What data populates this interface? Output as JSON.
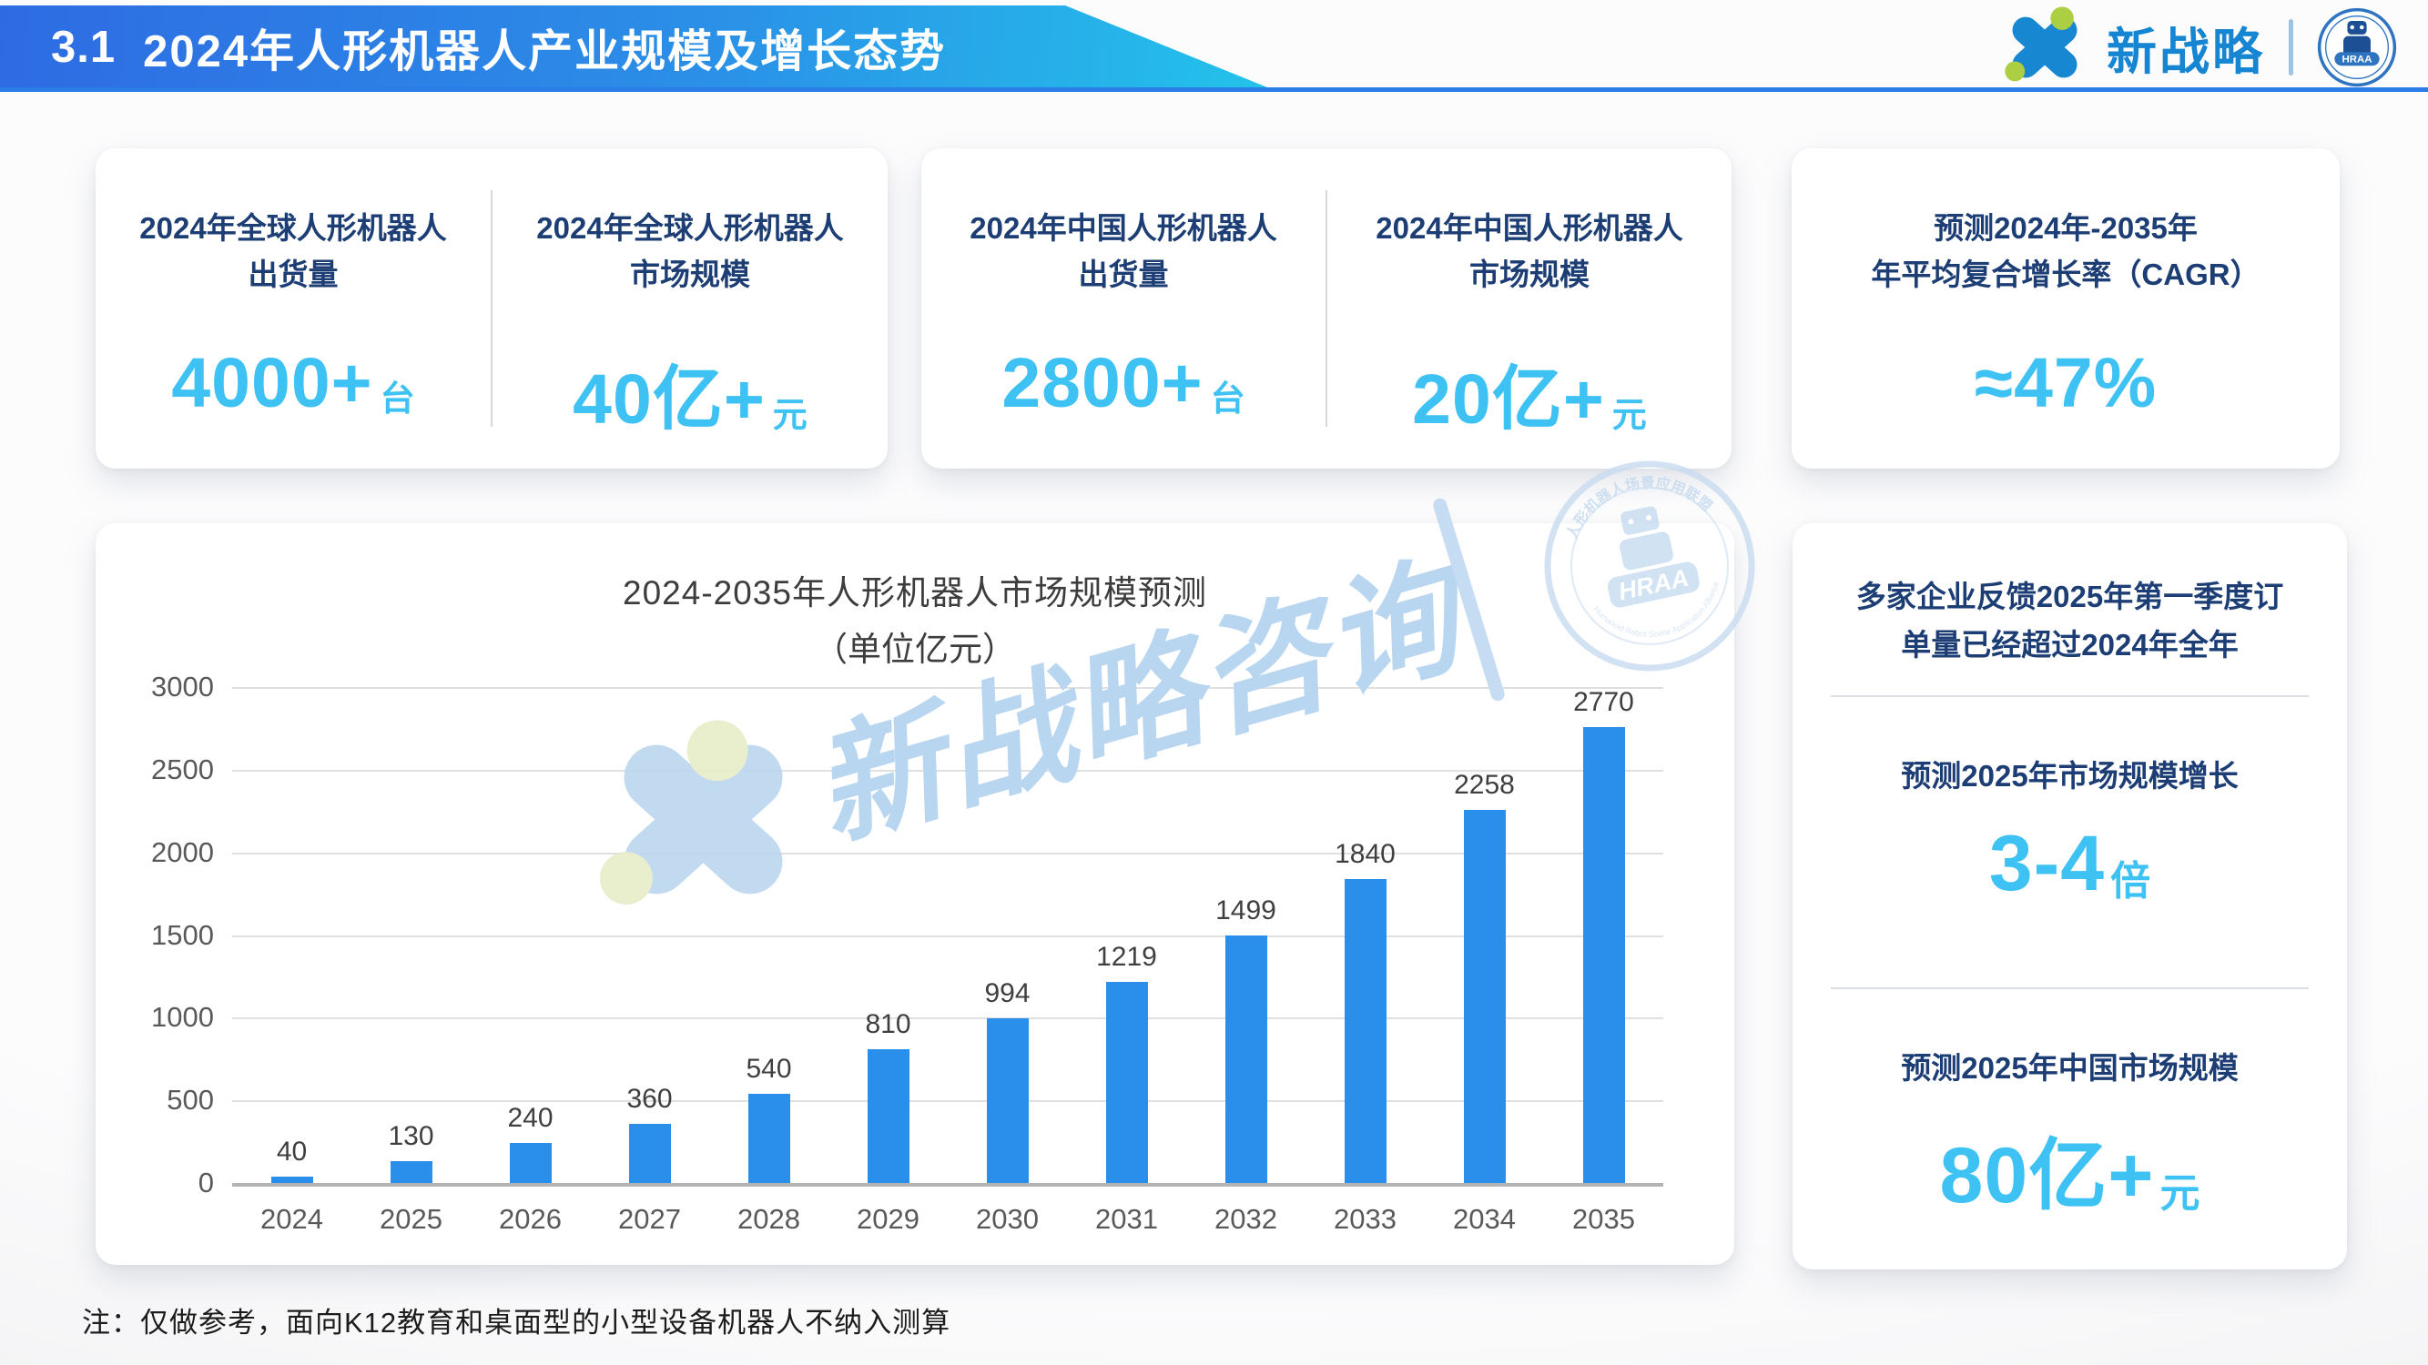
{
  "header": {
    "section": "3.1",
    "title": "2024年人形机器人产业规模及增长态势"
  },
  "logo": {
    "brand": "新战略",
    "badge": "HRAA"
  },
  "stat_cards": [
    {
      "pairs": [
        {
          "title1": "2024年全球人形机器人",
          "title2": "出货量",
          "value": "4000+",
          "unit": "台"
        },
        {
          "title1": "2024年全球人形机器人",
          "title2": "市场规模",
          "value": "40亿+",
          "unit": "元"
        }
      ]
    },
    {
      "pairs": [
        {
          "title1": "2024年中国人形机器人",
          "title2": "出货量",
          "value": "2800+",
          "unit": "台"
        },
        {
          "title1": "2024年中国人形机器人",
          "title2": "市场规模",
          "value": "20亿+",
          "unit": "元"
        }
      ]
    },
    {
      "title1": "预测2024年-2035年",
      "title2": "年平均复合增长率（CAGR）",
      "value": "≈47%"
    }
  ],
  "chart_data": {
    "type": "bar",
    "title": "2024-2035年人形机器人市场规模预测",
    "subtitle": "（单位亿元）",
    "categories": [
      "2024",
      "2025",
      "2026",
      "2027",
      "2028",
      "2029",
      "2030",
      "2031",
      "2032",
      "2033",
      "2034",
      "2035"
    ],
    "values": [
      40,
      130,
      240,
      360,
      540,
      810,
      994,
      1219,
      1499,
      1840,
      2258,
      2770
    ],
    "xlabel": "",
    "ylabel": "",
    "ylim": [
      0,
      3000
    ],
    "yticks": [
      0,
      500,
      1000,
      1500,
      2000,
      2500,
      3000
    ],
    "grid": true,
    "legend": false,
    "bar_color": "#2a8fea"
  },
  "side_panel": {
    "note_line1": "多家企业反馈2025年第一季度订",
    "note_line2": "单量已经超过2024年全年",
    "growth_label": "预测2025年市场规模增长",
    "growth_value": "3-4",
    "growth_unit": "倍",
    "china_label": "预测2025年中国市场规模",
    "china_value": "80亿+",
    "china_unit": "元"
  },
  "watermark": {
    "brand_text": "新战略咨询",
    "seal_text": "HRAA",
    "seal_ring_top": "人形机器人场景应用联盟",
    "seal_ring_bottom": "Humanoid Robot Scene Application Alliance"
  },
  "footnote": "注：仅做参考，面向K12教育和桌面型的小型设备机器人不纳入测算",
  "colors": {
    "accent_cyan": "#3ec1f3",
    "navy": "#1d3e75",
    "bar_blue": "#2a8fea",
    "banner_blue": "#2e6be3",
    "banner_cyan": "#23c3ea",
    "brand_blue": "#1686d3",
    "brand_green": "#abce42"
  }
}
